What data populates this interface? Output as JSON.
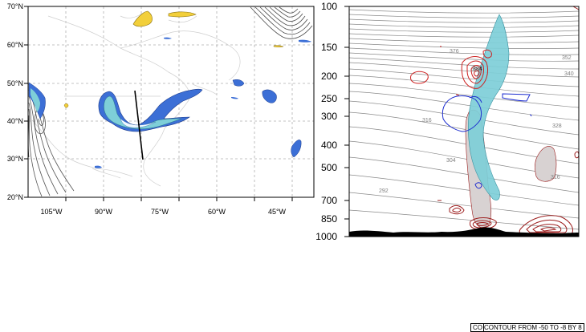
{
  "map_panel": {
    "lat_labels": [
      "70°N",
      "60°N",
      "50°N",
      "40°N",
      "30°N",
      "20°N"
    ],
    "lon_labels": [
      "105°W",
      "90°W",
      "75°W",
      "60°W",
      "45°W"
    ]
  },
  "cross_section_panel": {
    "pressure_labels": [
      "100",
      "150",
      "200",
      "250",
      "300",
      "400",
      "500",
      "700",
      "850",
      "1000"
    ],
    "theta_labels": [
      "376",
      "364",
      "352",
      "340",
      "328",
      "316",
      "316",
      "304",
      "292"
    ]
  },
  "footer": {
    "contour_info": "CONTOUR FROM -50 TO -8 BY 8",
    "contour_prefix": "CO"
  },
  "colors": {
    "teal_fill": "#7ecfd8",
    "blue_fill": "#3c6fd6",
    "yellow_fill": "#f2cf3a",
    "red_contour": "#cc2222",
    "dark_red_contour": "#9c1d1d",
    "blue_contour": "#1f2fd0",
    "gray_contour": "#808080",
    "grid": "#b0b0b0"
  }
}
